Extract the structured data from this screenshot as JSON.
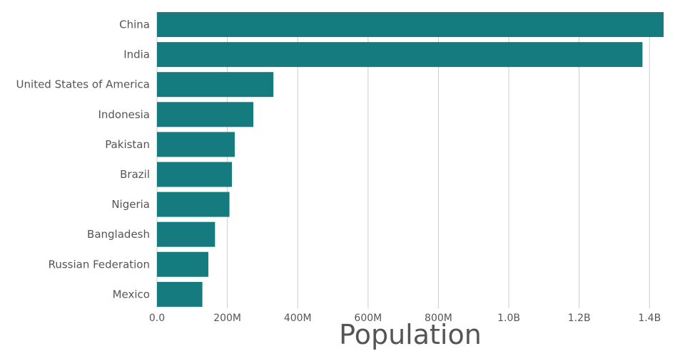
{
  "chart_data": {
    "type": "bar",
    "orientation": "horizontal",
    "categories": [
      "China",
      "India",
      "United States of America",
      "Indonesia",
      "Pakistan",
      "Brazil",
      "Nigeria",
      "Bangladesh",
      "Russian Federation",
      "Mexico"
    ],
    "values": [
      1440000000,
      1380000000,
      331000000,
      274000000,
      221000000,
      213000000,
      206000000,
      165000000,
      146000000,
      129000000
    ],
    "xlabel": "Population",
    "ylabel": "",
    "xlim": [
      0,
      1440000000
    ],
    "x_ticks": [
      0,
      200000000,
      400000000,
      600000000,
      800000000,
      1000000000,
      1200000000,
      1400000000
    ],
    "x_tick_labels": [
      "0.0",
      "200M",
      "400M",
      "600M",
      "800M",
      "1.0B",
      "1.2B",
      "1.4B"
    ],
    "grid": "vertical",
    "bar_color": "#167b7e"
  }
}
